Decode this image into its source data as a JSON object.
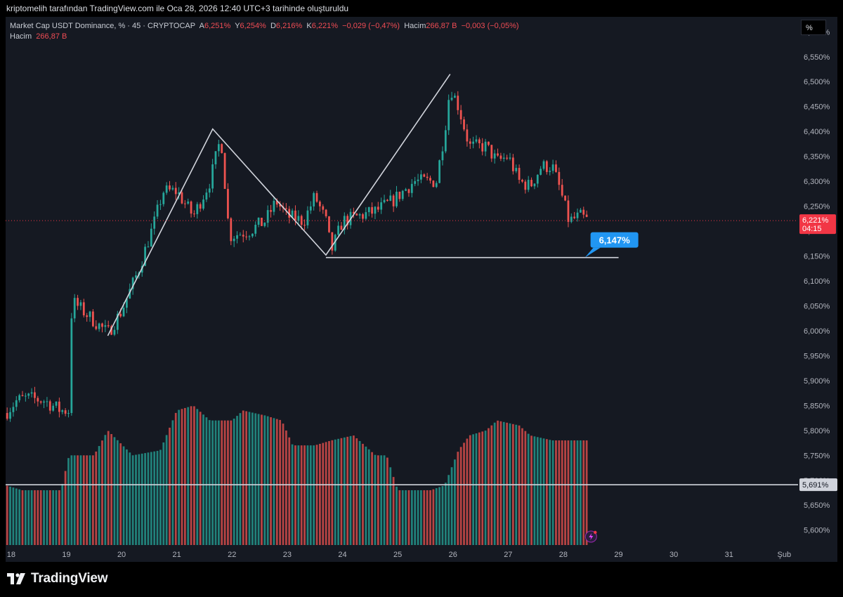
{
  "header": {
    "attribution": "kriptomelih tarafından TradingView.com ile Oca 28, 2026 12:40 UTC+3 tarihinde oluşturuldu"
  },
  "legend": {
    "symbol": "Market Cap USDT Dominance, %  · 45 · CRYPTOCAP",
    "open_label": "A",
    "open_value": "6,251%",
    "high_label": "Y",
    "high_value": "6,254%",
    "low_label": "D",
    "low_value": "6,216%",
    "close_label": "K",
    "close_value": "6,221%",
    "change": "−0,029 (−0,47%)",
    "volume_label": "Hacim",
    "volume_value": "266,87 B",
    "volume_change": "−0,003 (−0,05%)",
    "volume_row_label": "Hacim",
    "volume_row_value": "266,87 B"
  },
  "scale_button": "%",
  "brand": {
    "name": "TradingView"
  },
  "colors": {
    "background": "#151922",
    "up": "#26a69a",
    "down": "#ef5350",
    "accent": "#2962ff",
    "price_tag": "#f23645",
    "callout": "#2196f3"
  },
  "chart_data": {
    "type": "candlestick",
    "symbol": "Market Cap USDT Dominance",
    "interval": "45",
    "ylim": [
      5.57,
      6.63
    ],
    "y_ticks": [
      "6,600%",
      "6,550%",
      "6,500%",
      "6,450%",
      "6,400%",
      "6,350%",
      "6,300%",
      "6,250%",
      "6,200%",
      "6,150%",
      "6,100%",
      "6,050%",
      "6,000%",
      "5,950%",
      "5,900%",
      "5,850%",
      "5,800%",
      "5,750%",
      "5,700%",
      "5,650%",
      "5,600%"
    ],
    "x_ticks": [
      "18",
      "19",
      "20",
      "21",
      "22",
      "23",
      "24",
      "25",
      "26",
      "27",
      "28",
      "29",
      "30",
      "31",
      "Şub"
    ],
    "x_range_days": [
      17.9,
      32.25
    ],
    "price_keypoints": [
      [
        17.9,
        5.835
      ],
      [
        18.1,
        5.86
      ],
      [
        18.3,
        5.865
      ],
      [
        18.6,
        5.86
      ],
      [
        18.9,
        5.84
      ],
      [
        19.05,
        5.84
      ],
      [
        19.1,
        6.06
      ],
      [
        19.3,
        6.04
      ],
      [
        19.5,
        6.02
      ],
      [
        19.75,
        5.995
      ],
      [
        20.0,
        6.04
      ],
      [
        20.3,
        6.12
      ],
      [
        20.6,
        6.22
      ],
      [
        20.75,
        6.28
      ],
      [
        21.0,
        6.28
      ],
      [
        21.3,
        6.23
      ],
      [
        21.6,
        6.3
      ],
      [
        21.8,
        6.39
      ],
      [
        21.95,
        6.19
      ],
      [
        22.3,
        6.2
      ],
      [
        22.6,
        6.22
      ],
      [
        22.8,
        6.26
      ],
      [
        23.0,
        6.23
      ],
      [
        23.3,
        6.22
      ],
      [
        23.5,
        6.27
      ],
      [
        23.7,
        6.22
      ],
      [
        23.8,
        6.16
      ],
      [
        24.0,
        6.22
      ],
      [
        24.3,
        6.23
      ],
      [
        24.6,
        6.24
      ],
      [
        24.9,
        6.26
      ],
      [
        25.3,
        6.3
      ],
      [
        25.7,
        6.3
      ],
      [
        25.85,
        6.4
      ],
      [
        25.95,
        6.49
      ],
      [
        26.1,
        6.45
      ],
      [
        26.3,
        6.37
      ],
      [
        26.6,
        6.37
      ],
      [
        26.8,
        6.34
      ],
      [
        27.0,
        6.35
      ],
      [
        27.2,
        6.3
      ],
      [
        27.4,
        6.29
      ],
      [
        27.6,
        6.33
      ],
      [
        27.8,
        6.33
      ],
      [
        27.95,
        6.28
      ],
      [
        28.1,
        6.22
      ],
      [
        28.3,
        6.23
      ],
      [
        28.45,
        6.221
      ]
    ],
    "volume_band": {
      "min": 5.57,
      "max": 5.86
    },
    "volume_keypoints": [
      [
        17.9,
        5.69
      ],
      [
        18.2,
        5.68
      ],
      [
        18.9,
        5.68
      ],
      [
        19.05,
        5.75
      ],
      [
        19.5,
        5.75
      ],
      [
        19.75,
        5.8
      ],
      [
        20.2,
        5.75
      ],
      [
        20.7,
        5.76
      ],
      [
        21.0,
        5.84
      ],
      [
        21.3,
        5.85
      ],
      [
        21.6,
        5.82
      ],
      [
        22.0,
        5.82
      ],
      [
        22.2,
        5.84
      ],
      [
        22.6,
        5.83
      ],
      [
        22.9,
        5.82
      ],
      [
        23.1,
        5.77
      ],
      [
        23.5,
        5.77
      ],
      [
        23.8,
        5.78
      ],
      [
        24.2,
        5.79
      ],
      [
        24.6,
        5.75
      ],
      [
        24.8,
        5.75
      ],
      [
        25.0,
        5.68
      ],
      [
        25.6,
        5.68
      ],
      [
        25.85,
        5.69
      ],
      [
        26.1,
        5.76
      ],
      [
        26.3,
        5.79
      ],
      [
        26.6,
        5.8
      ],
      [
        26.8,
        5.82
      ],
      [
        27.2,
        5.81
      ],
      [
        27.4,
        5.79
      ],
      [
        27.8,
        5.78
      ],
      [
        28.1,
        5.78
      ],
      [
        28.45,
        5.78
      ]
    ],
    "candle_count": 190,
    "current_price": {
      "value": 6.221,
      "label": "6,221%",
      "countdown": "04:15"
    },
    "horizontal_lines": [
      {
        "value": 5.691,
        "label": "5,691%"
      }
    ],
    "drawings": {
      "zigzag": [
        [
          19.75,
          5.99
        ],
        [
          21.65,
          6.405
        ],
        [
          23.7,
          6.152
        ],
        [
          25.95,
          6.515
        ]
      ],
      "support_line": {
        "value": 6.147,
        "from": 23.7,
        "to": 29.0,
        "label": "6,147%"
      }
    }
  }
}
